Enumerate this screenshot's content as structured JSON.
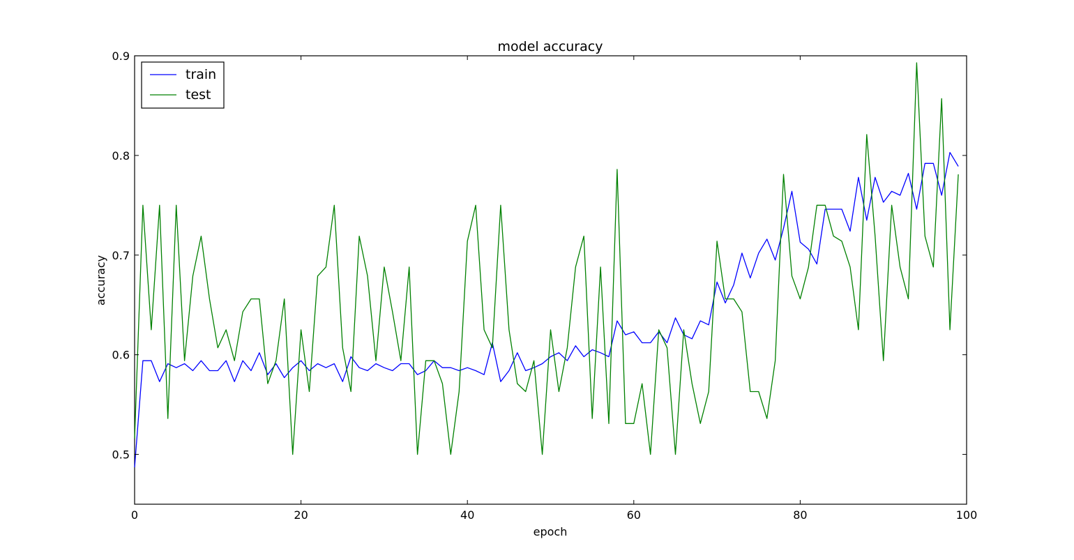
{
  "chart_data": {
    "type": "line",
    "title": "model accuracy",
    "xlabel": "epoch",
    "ylabel": "accuracy",
    "xlim": [
      0,
      100
    ],
    "ylim": [
      0.45,
      0.9
    ],
    "xticks": [
      0,
      20,
      40,
      60,
      80,
      100
    ],
    "xtick_labels": [
      "0",
      "20",
      "40",
      "60",
      "80",
      "100"
    ],
    "yticks": [
      0.5,
      0.6,
      0.7,
      0.8,
      0.9
    ],
    "ytick_labels": [
      "0.5",
      "0.6",
      "0.7",
      "0.8",
      "0.9"
    ],
    "grid": false,
    "legend_position": "top-left",
    "series": [
      {
        "name": "train",
        "color": "#0000ff",
        "x": [
          0,
          1,
          2,
          3,
          4,
          5,
          6,
          7,
          8,
          9,
          10,
          11,
          12,
          13,
          14,
          15,
          16,
          17,
          18,
          19,
          20,
          21,
          22,
          23,
          24,
          25,
          26,
          27,
          28,
          29,
          30,
          31,
          32,
          33,
          34,
          35,
          36,
          37,
          38,
          39,
          40,
          41,
          42,
          43,
          44,
          45,
          46,
          47,
          48,
          49,
          50,
          51,
          52,
          53,
          54,
          55,
          56,
          57,
          58,
          59,
          60,
          61,
          62,
          63,
          64,
          65,
          66,
          67,
          68,
          69,
          70,
          71,
          72,
          73,
          74,
          75,
          76,
          77,
          78,
          79,
          80,
          81,
          82,
          83,
          84,
          85,
          86,
          87,
          88,
          89,
          90,
          91,
          92,
          93,
          94,
          95,
          96,
          97,
          98,
          99
        ],
        "values": [
          0.487,
          0.594,
          0.594,
          0.573,
          0.591,
          0.587,
          0.591,
          0.584,
          0.594,
          0.584,
          0.584,
          0.594,
          0.573,
          0.594,
          0.584,
          0.602,
          0.58,
          0.591,
          0.577,
          0.587,
          0.594,
          0.584,
          0.591,
          0.587,
          0.591,
          0.573,
          0.598,
          0.587,
          0.584,
          0.591,
          0.587,
          0.584,
          0.591,
          0.591,
          0.58,
          0.584,
          0.594,
          0.587,
          0.587,
          0.584,
          0.587,
          0.584,
          0.58,
          0.612,
          0.573,
          0.584,
          0.602,
          0.584,
          0.587,
          0.591,
          0.598,
          0.602,
          0.594,
          0.609,
          0.598,
          0.605,
          0.602,
          0.598,
          0.634,
          0.62,
          0.623,
          0.612,
          0.612,
          0.623,
          0.612,
          0.637,
          0.62,
          0.616,
          0.634,
          0.63,
          0.673,
          0.652,
          0.67,
          0.702,
          0.677,
          0.702,
          0.716,
          0.695,
          0.727,
          0.764,
          0.713,
          0.706,
          0.691,
          0.746,
          0.746,
          0.746,
          0.724,
          0.778,
          0.735,
          0.778,
          0.753,
          0.764,
          0.76,
          0.782,
          0.746,
          0.792,
          0.792,
          0.76,
          0.803,
          0.789
        ]
      },
      {
        "name": "test",
        "color": "#008000",
        "x": [
          0,
          1,
          2,
          3,
          4,
          5,
          6,
          7,
          8,
          9,
          10,
          11,
          12,
          13,
          14,
          15,
          16,
          17,
          18,
          19,
          20,
          21,
          22,
          23,
          24,
          25,
          26,
          27,
          28,
          29,
          30,
          31,
          32,
          33,
          34,
          35,
          36,
          37,
          38,
          39,
          40,
          41,
          42,
          43,
          44,
          45,
          46,
          47,
          48,
          49,
          50,
          51,
          52,
          53,
          54,
          55,
          56,
          57,
          58,
          59,
          60,
          61,
          62,
          63,
          64,
          65,
          66,
          67,
          68,
          69,
          70,
          71,
          72,
          73,
          74,
          75,
          76,
          77,
          78,
          79,
          80,
          81,
          82,
          83,
          84,
          85,
          86,
          87,
          88,
          89,
          90,
          91,
          92,
          93,
          94,
          95,
          96,
          97,
          98,
          99
        ],
        "values": [
          0.516,
          0.75,
          0.625,
          0.75,
          0.536,
          0.75,
          0.594,
          0.679,
          0.719,
          0.656,
          0.607,
          0.625,
          0.594,
          0.643,
          0.656,
          0.656,
          0.571,
          0.594,
          0.656,
          0.5,
          0.625,
          0.563,
          0.679,
          0.688,
          0.75,
          0.607,
          0.563,
          0.719,
          0.679,
          0.594,
          0.688,
          0.643,
          0.594,
          0.688,
          0.5,
          0.594,
          0.594,
          0.571,
          0.5,
          0.563,
          0.714,
          0.75,
          0.625,
          0.607,
          0.75,
          0.625,
          0.571,
          0.563,
          0.594,
          0.5,
          0.625,
          0.563,
          0.607,
          0.688,
          0.719,
          0.536,
          0.688,
          0.531,
          0.786,
          0.531,
          0.531,
          0.571,
          0.5,
          0.625,
          0.607,
          0.5,
          0.625,
          0.571,
          0.531,
          0.563,
          0.714,
          0.656,
          0.656,
          0.643,
          0.563,
          0.563,
          0.536,
          0.594,
          0.781,
          0.679,
          0.656,
          0.688,
          0.75,
          0.75,
          0.719,
          0.714,
          0.688,
          0.625,
          0.821,
          0.719,
          0.594,
          0.75,
          0.688,
          0.656,
          0.893,
          0.719,
          0.688,
          0.857,
          0.625,
          0.781
        ]
      }
    ]
  }
}
